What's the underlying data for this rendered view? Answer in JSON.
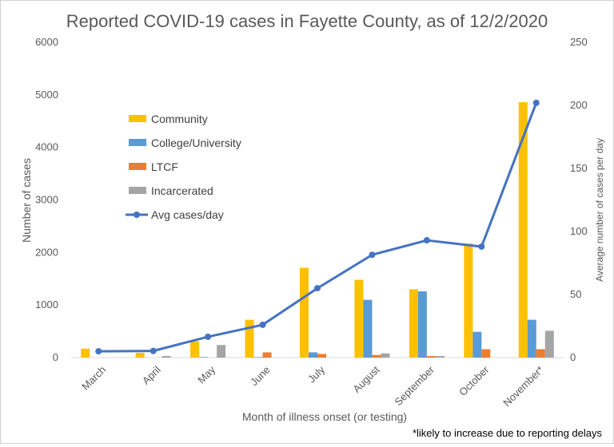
{
  "chart_data": {
    "type": "bar",
    "title": "Reported COVID-19 cases in Fayette County, as of 12/2/2020",
    "xlabel": "Month of illness onset (or testing)",
    "ylabel": "Number of cases",
    "y2label": "Average number of cases per day",
    "footnote": "*likely to increase due to reporting delays",
    "ylim": [
      0,
      6000
    ],
    "yticks": [
      0,
      1000,
      2000,
      3000,
      4000,
      5000,
      6000
    ],
    "y2lim": [
      0,
      250
    ],
    "y2ticks": [
      0,
      50,
      100,
      150,
      200,
      250
    ],
    "categories": [
      "March",
      "April",
      "May",
      "June",
      "July",
      "August",
      "September",
      "October",
      "November*"
    ],
    "series": [
      {
        "name": "Community",
        "color": "#FFC000",
        "values": [
          170,
          90,
          310,
          720,
          1710,
          1480,
          1300,
          2170,
          4860
        ]
      },
      {
        "name": "College/University",
        "color": "#5B9BD5",
        "values": [
          0,
          0,
          10,
          10,
          100,
          1100,
          1260,
          490,
          720
        ]
      },
      {
        "name": "LTCF",
        "color": "#ED7D31",
        "values": [
          0,
          0,
          0,
          100,
          70,
          50,
          30,
          160,
          160
        ]
      },
      {
        "name": "Incarcerated",
        "color": "#A5A5A5",
        "values": [
          0,
          30,
          240,
          0,
          0,
          80,
          30,
          0,
          510
        ]
      }
    ],
    "line_series": {
      "name": "Avg cases/day",
      "color": "#4472C4",
      "axis": "secondary",
      "values": [
        5,
        5.3,
        16.5,
        26,
        55,
        81.5,
        93,
        88,
        202
      ]
    },
    "legend_position": "upper-left",
    "grid": false
  }
}
